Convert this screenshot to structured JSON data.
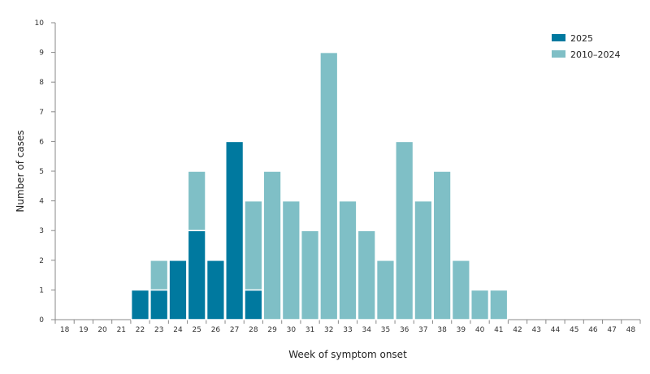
{
  "chart_data": {
    "type": "bar",
    "stacked": true,
    "xlabel": "Week of symptom onset",
    "ylabel": "Number of cases",
    "ylim": [
      0,
      10
    ],
    "yticks": [
      0,
      1,
      2,
      3,
      4,
      5,
      6,
      7,
      8,
      9,
      10
    ],
    "categories": [
      "18",
      "19",
      "20",
      "21",
      "22",
      "23",
      "24",
      "25",
      "26",
      "27",
      "28",
      "29",
      "30",
      "31",
      "32",
      "33",
      "34",
      "35",
      "36",
      "37",
      "38",
      "39",
      "40",
      "41",
      "42",
      "43",
      "44",
      "45",
      "46",
      "47",
      "48"
    ],
    "series": [
      {
        "name": "2025",
        "color": "#00799f",
        "values": [
          0,
          0,
          0,
          0,
          1,
          1,
          2,
          3,
          2,
          6,
          1,
          0,
          0,
          0,
          0,
          0,
          0,
          0,
          0,
          0,
          0,
          0,
          0,
          0,
          0,
          0,
          0,
          0,
          0,
          0,
          0
        ]
      },
      {
        "name": "2010–2024",
        "color": "#7fbfc6",
        "values": [
          0,
          0,
          0,
          0,
          0,
          1,
          0,
          2,
          0,
          0,
          3,
          5,
          4,
          3,
          9,
          4,
          3,
          2,
          6,
          4,
          5,
          2,
          1,
          1,
          0,
          0,
          0,
          0,
          0,
          0,
          0
        ]
      }
    ],
    "legend_position": "top-right",
    "grid": false
  }
}
